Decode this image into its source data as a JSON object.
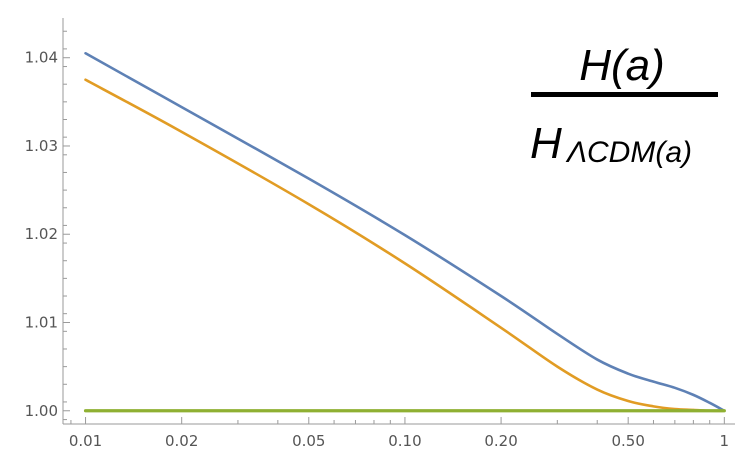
{
  "chart_data": {
    "type": "line",
    "x_scale": "log",
    "title_numerator": "H(a)",
    "title_denominator": "H",
    "title_denominator_subscript": "ΛCDM(a)",
    "xlabel": "",
    "ylabel": "",
    "xlim": [
      0.0085,
      1.08
    ],
    "ylim": [
      0.9985,
      1.0445
    ],
    "x_ticks": [
      {
        "value": 0.01,
        "label": "0.01"
      },
      {
        "value": 0.02,
        "label": "0.02"
      },
      {
        "value": 0.05,
        "label": "0.05"
      },
      {
        "value": 0.1,
        "label": "0.10"
      },
      {
        "value": 0.2,
        "label": "0.20"
      },
      {
        "value": 0.5,
        "label": "0.50"
      },
      {
        "value": 1.0,
        "label": "1"
      }
    ],
    "y_ticks": [
      {
        "value": 1.0,
        "label": "1.00"
      },
      {
        "value": 1.01,
        "label": "1.01"
      },
      {
        "value": 1.02,
        "label": "1.02"
      },
      {
        "value": 1.03,
        "label": "1.03"
      },
      {
        "value": 1.04,
        "label": "1.04"
      }
    ],
    "grid": false,
    "series": [
      {
        "color": "#5e81b5",
        "x": [
          0.01,
          0.02,
          0.05,
          0.1,
          0.2,
          0.3,
          0.4,
          0.5,
          0.6,
          0.7,
          0.8,
          0.9,
          1.0
        ],
        "y": [
          1.0405,
          1.0344,
          1.0263,
          1.0199,
          1.013,
          1.0087,
          1.0058,
          1.0042,
          1.0033,
          1.0026,
          1.0018,
          1.0009,
          1.0
        ]
      },
      {
        "color": "#e19c24",
        "x": [
          0.01,
          0.02,
          0.05,
          0.1,
          0.2,
          0.3,
          0.4,
          0.5,
          0.6,
          0.7,
          0.8,
          0.9,
          1.0
        ],
        "y": [
          1.0375,
          1.0316,
          1.0234,
          1.0167,
          1.0094,
          1.005,
          1.0024,
          1.0011,
          1.0005,
          1.0002,
          1.0001,
          1.0,
          1.0
        ]
      },
      {
        "color": "#8fb032",
        "x": [
          0.01,
          1.0
        ],
        "y": [
          1.0,
          1.0
        ]
      }
    ]
  }
}
